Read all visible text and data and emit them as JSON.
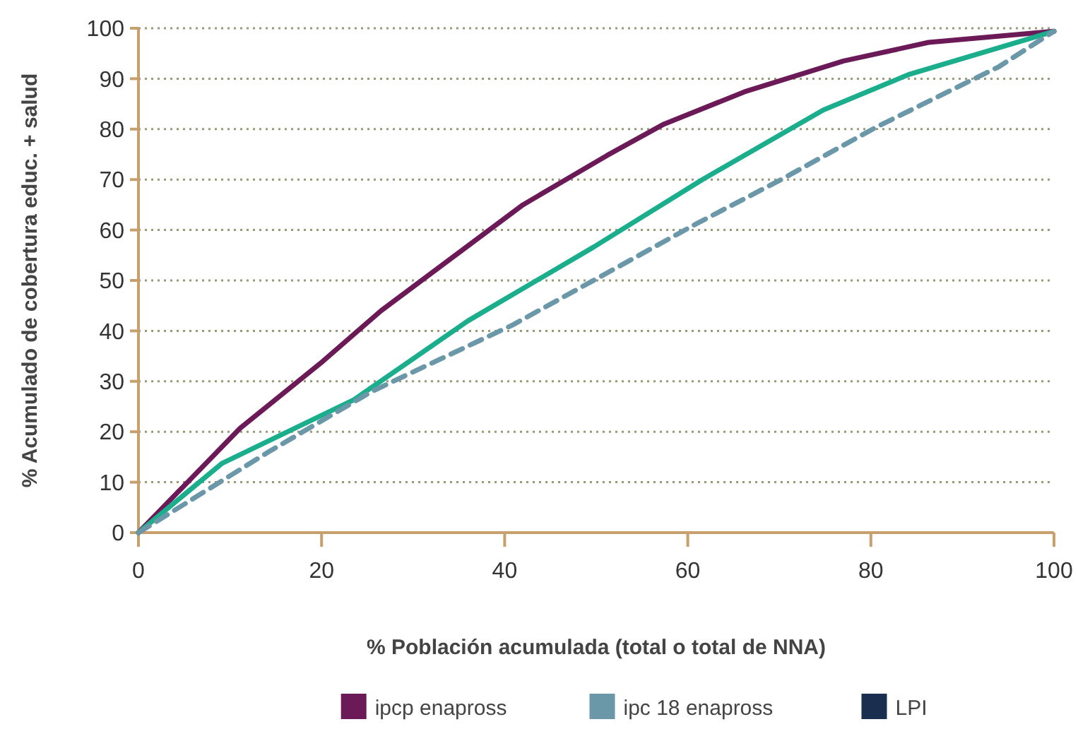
{
  "chart_data": {
    "type": "line",
    "xlabel": "% Población acumulada (total o total de NNA)",
    "ylabel": "% Acumulado de cobertura educ. + salud",
    "xlim": [
      0,
      100
    ],
    "ylim": [
      0,
      100
    ],
    "xticks": [
      0,
      20,
      40,
      60,
      80,
      100
    ],
    "yticks": [
      0,
      10,
      20,
      30,
      40,
      50,
      60,
      70,
      80,
      90,
      100
    ],
    "grid": "y",
    "legend": "bottom",
    "marker": "none",
    "series": [
      {
        "name": "ipcp enapross",
        "color": "#6b1a57",
        "line_style": "solid",
        "x": [
          0,
          11.1,
          19.9,
          26.5,
          42,
          51.2,
          57.4,
          66.2,
          77,
          86.3,
          100
        ],
        "values": [
          0,
          20.7,
          33.6,
          44,
          65,
          74.8,
          81,
          87.4,
          93.5,
          97.2,
          99.4
        ]
      },
      {
        "color": "#1aae8c",
        "line_style": "solid",
        "x": [
          0,
          9.1,
          23.5,
          36,
          49.7,
          61.6,
          74.8,
          84.1,
          100
        ],
        "values": [
          0,
          13.7,
          26.3,
          42,
          56.6,
          70,
          83.8,
          90.8,
          99.4
        ]
      },
      {
        "name": "ipc 18 enapross",
        "color": "#6b98a8",
        "line_style": "dashed",
        "x": [
          0,
          14.2,
          25.5,
          40.9,
          51.2,
          61,
          70.2,
          80.6,
          94,
          100
        ],
        "values": [
          0,
          16,
          28,
          41.2,
          51.5,
          61.3,
          70,
          80.4,
          92.4,
          99.4
        ]
      },
      {
        "name": "LPI",
        "color": "#1a2e4f",
        "line_style": "solid"
      }
    ]
  }
}
